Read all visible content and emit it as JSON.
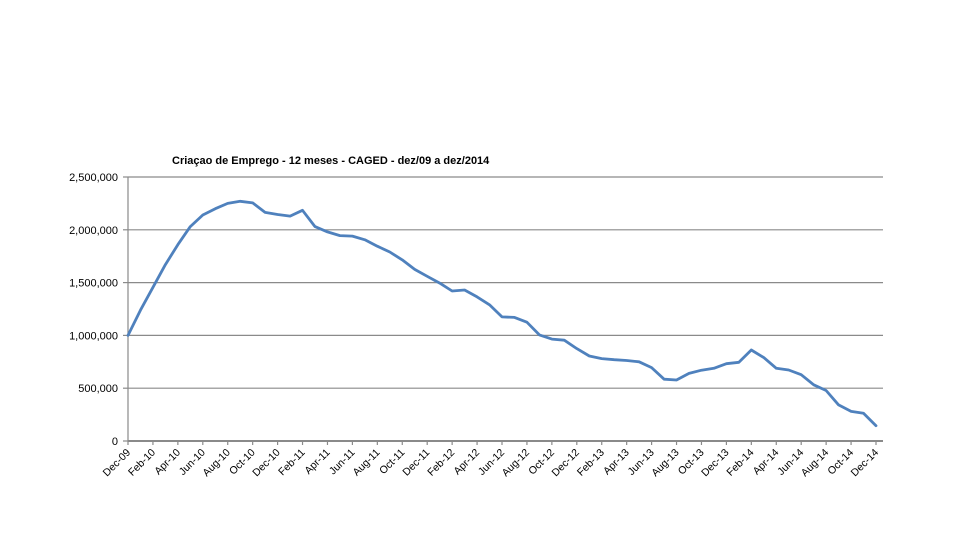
{
  "chart_data": {
    "type": "line",
    "title": "Criaçao de Emprego - 12 meses - CAGED - dez/09 a dez/2014",
    "legend": "none",
    "grid": "horizontal",
    "line_color": "#4F81BD",
    "grid_color": "#8A8A8A",
    "axis_color": "#8A8A8A",
    "ylim": [
      0,
      2500000
    ],
    "y_ticks": [
      "2,500,000",
      "2,000,000",
      "1,500,000",
      "1,000,000",
      "500,000",
      "0"
    ],
    "y_tick_values": [
      2500000,
      2000000,
      1500000,
      1000000,
      500000,
      0
    ],
    "x_label_every": 2,
    "categories": [
      "Dec-09",
      "Jan-10",
      "Feb-10",
      "Mar-10",
      "Apr-10",
      "May-10",
      "Jun-10",
      "Jul-10",
      "Aug-10",
      "Sep-10",
      "Oct-10",
      "Nov-10",
      "Dec-10",
      "Jan-11",
      "Feb-11",
      "Mar-11",
      "Apr-11",
      "May-11",
      "Jun-11",
      "Jul-11",
      "Aug-11",
      "Sep-11",
      "Oct-11",
      "Nov-11",
      "Dec-11",
      "Jan-12",
      "Feb-12",
      "Mar-12",
      "Apr-12",
      "May-12",
      "Jun-12",
      "Jul-12",
      "Aug-12",
      "Sep-12",
      "Oct-12",
      "Nov-12",
      "Dec-12",
      "Jan-13",
      "Feb-13",
      "Mar-13",
      "Apr-13",
      "May-13",
      "Jun-13",
      "Jul-13",
      "Aug-13",
      "Sep-13",
      "Oct-13",
      "Nov-13",
      "Dec-13",
      "Jan-14",
      "Feb-14",
      "Mar-14",
      "Apr-14",
      "May-14",
      "Jun-14",
      "Jul-14",
      "Aug-14",
      "Sep-14",
      "Oct-14",
      "Nov-14",
      "Dec-14"
    ],
    "values": [
      1000000,
      1240000,
      1455000,
      1670000,
      1860000,
      2030000,
      2140000,
      2200000,
      2250000,
      2270000,
      2255000,
      2165000,
      2145000,
      2130000,
      2185000,
      2030000,
      1980000,
      1945000,
      1940000,
      1905000,
      1845000,
      1790000,
      1715000,
      1625000,
      1560000,
      1495000,
      1420000,
      1430000,
      1365000,
      1290000,
      1175000,
      1170000,
      1125000,
      1005000,
      965000,
      955000,
      875000,
      805000,
      780000,
      770000,
      762000,
      750000,
      695000,
      585000,
      578000,
      640000,
      670000,
      688000,
      732000,
      745000,
      862000,
      790000,
      688000,
      672000,
      628000,
      532000,
      478000,
      342000,
      280000,
      262000,
      145000
    ]
  }
}
